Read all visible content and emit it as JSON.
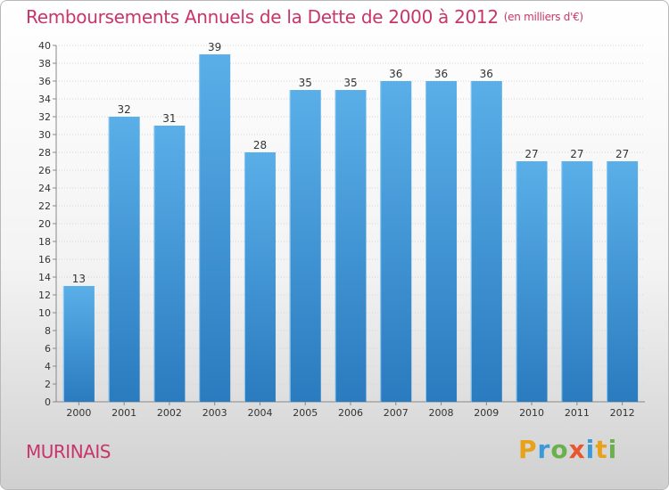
{
  "title": {
    "main": "Remboursements Annuels de la Dette de 2000 à 2012",
    "unit": "(en milliers d'€)"
  },
  "city": "MURINAIS",
  "logo": {
    "text": "Proxiti",
    "letters": [
      {
        "char": "P",
        "color": "#e8a219"
      },
      {
        "char": "r",
        "color": "#3a9ad9"
      },
      {
        "char": "o",
        "color": "#6ab04c"
      },
      {
        "char": "x",
        "color": "#e8552e"
      },
      {
        "char": "i",
        "color": "#3a9ad9"
      },
      {
        "char": "t",
        "color": "#e8a219"
      },
      {
        "char": "i",
        "color": "#6ab04c"
      }
    ]
  },
  "colors": {
    "title": "#c8356a",
    "bar_top": "#5aafe8",
    "bar_bottom": "#2a7bbf"
  },
  "chart_data": {
    "type": "bar",
    "categories": [
      "2000",
      "2001",
      "2002",
      "2003",
      "2004",
      "2005",
      "2006",
      "2007",
      "2008",
      "2009",
      "2010",
      "2011",
      "2012"
    ],
    "values": [
      13,
      32,
      31,
      39,
      28,
      35,
      35,
      36,
      36,
      36,
      27,
      27,
      27
    ],
    "ylim": [
      0,
      40
    ],
    "yticks": [
      0,
      2,
      4,
      6,
      8,
      10,
      12,
      14,
      16,
      18,
      20,
      22,
      24,
      26,
      28,
      30,
      32,
      34,
      36,
      38,
      40
    ],
    "grid": true,
    "data_labels": true
  }
}
